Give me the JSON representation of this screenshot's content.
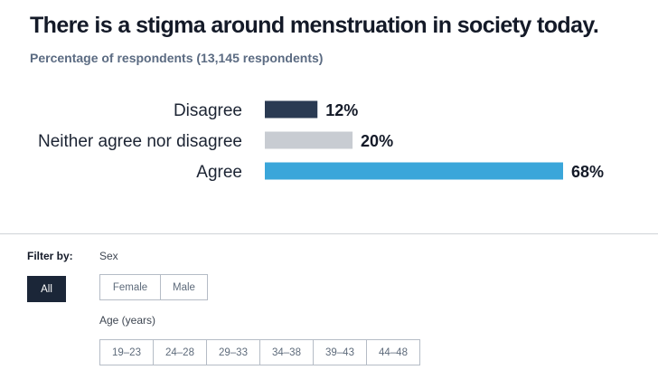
{
  "chart_data": {
    "type": "bar",
    "orientation": "horizontal",
    "title": "There is a stigma around menstruation in society today.",
    "subtitle": "Percentage of respondents (13,145 respondents)",
    "categories": [
      "Disagree",
      "Neither agree nor disagree",
      "Agree"
    ],
    "values": [
      12,
      20,
      68
    ],
    "value_labels": [
      "12%",
      "20%",
      "68%"
    ],
    "colors": [
      "#2a3a52",
      "#c8ccd2",
      "#3aa6da"
    ],
    "xlim": [
      0,
      68
    ],
    "grid": false
  },
  "filters": {
    "label": "Filter by:",
    "all_label": "All",
    "sex": {
      "label": "Sex",
      "options": [
        "Female",
        "Male"
      ]
    },
    "age": {
      "label": "Age (years)",
      "options": [
        "19–23",
        "24–28",
        "29–33",
        "34–38",
        "39–43",
        "44–48"
      ]
    }
  }
}
